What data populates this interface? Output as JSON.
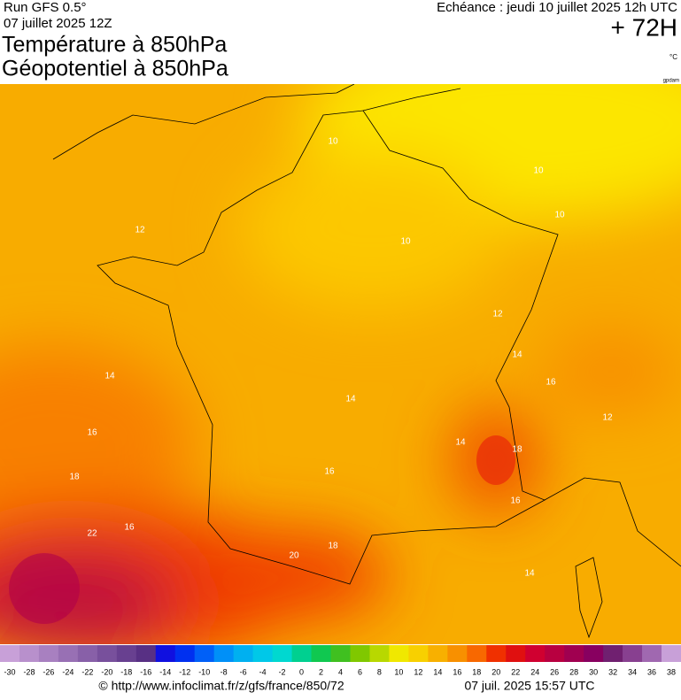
{
  "header": {
    "run": "Run GFS 0.5°",
    "date": "07 juillet 2025 12Z",
    "title1": "Température à 850hPa",
    "title2": "Géopotentiel à 850hPa",
    "valid": "Echéance : jeudi 10 juillet 2025 12h UTC",
    "lead": "+ 72H",
    "unit": "°C",
    "credit": "gpdam"
  },
  "contour_labels": [
    10,
    10,
    10,
    12,
    10,
    12,
    14,
    14,
    16,
    12,
    16,
    18,
    14,
    16,
    18,
    22,
    20,
    18,
    16,
    14,
    14,
    16
  ],
  "colorbar": [
    {
      "value": -30,
      "color": "#c8a0d8"
    },
    {
      "value": -28,
      "color": "#b890cc"
    },
    {
      "value": -26,
      "color": "#a880c0"
    },
    {
      "value": -24,
      "color": "#9870b4"
    },
    {
      "value": -22,
      "color": "#8860a8"
    },
    {
      "value": -20,
      "color": "#78509c"
    },
    {
      "value": -18,
      "color": "#684090"
    },
    {
      "value": -16,
      "color": "#583084"
    },
    {
      "value": -14,
      "color": "#1010e0"
    },
    {
      "value": -12,
      "color": "#0030f0"
    },
    {
      "value": -10,
      "color": "#0060f8"
    },
    {
      "value": -8,
      "color": "#0090f8"
    },
    {
      "value": -6,
      "color": "#00b0f0"
    },
    {
      "value": -4,
      "color": "#00c8e8"
    },
    {
      "value": -2,
      "color": "#00d8d0"
    },
    {
      "value": 0,
      "color": "#00d090"
    },
    {
      "value": 2,
      "color": "#10c850"
    },
    {
      "value": 4,
      "color": "#40c020"
    },
    {
      "value": 6,
      "color": "#80c800"
    },
    {
      "value": 8,
      "color": "#b8d800"
    },
    {
      "value": 10,
      "color": "#f0e800"
    },
    {
      "value": 12,
      "color": "#f8d000"
    },
    {
      "value": 14,
      "color": "#f8b000"
    },
    {
      "value": 16,
      "color": "#f89000"
    },
    {
      "value": 18,
      "color": "#f86800"
    },
    {
      "value": 20,
      "color": "#f03000"
    },
    {
      "value": 22,
      "color": "#e01010"
    },
    {
      "value": 24,
      "color": "#d00030"
    },
    {
      "value": 26,
      "color": "#b80040"
    },
    {
      "value": 28,
      "color": "#a00050"
    },
    {
      "value": 30,
      "color": "#880060"
    },
    {
      "value": 32,
      "color": "#702070"
    },
    {
      "value": 34,
      "color": "#884090"
    },
    {
      "value": 36,
      "color": "#a068b0"
    },
    {
      "value": 38,
      "color": "#c8a0d8"
    }
  ],
  "footer": {
    "url": "© http://www.infoclimat.fr/z/gfs/france/850/72",
    "stamp": "07 juil. 2025 15:57 UTC"
  }
}
